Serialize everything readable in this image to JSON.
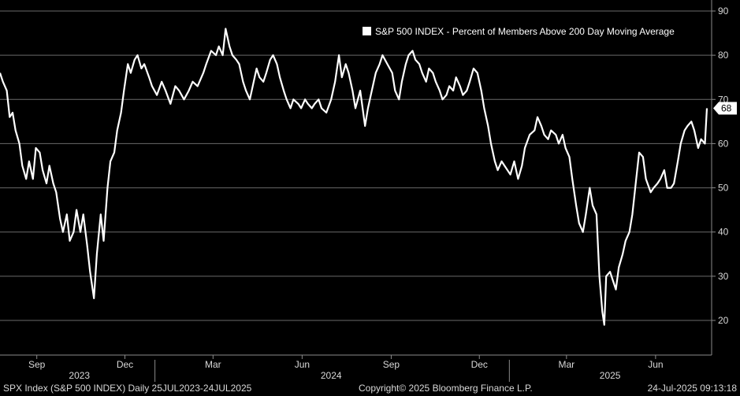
{
  "footer": {
    "left": "SPX Index (S&P 500 INDEX)  Daily 25JUL2023-24JUL2025",
    "center": "Copyright© 2025 Bloomberg Finance L.P.",
    "right": "24-Jul-2025 09:13:18"
  },
  "chart_data": {
    "type": "line",
    "title": "",
    "legend": {
      "entry": "S&P 500 INDEX - Percent of Members Above 200 Day Moving Average",
      "position": "top-right"
    },
    "ylim": [
      10,
      90
    ],
    "y_ticks": [
      20,
      30,
      40,
      50,
      60,
      70,
      80,
      90
    ],
    "grid": true,
    "y_axis_side": "right",
    "x_range": [
      "2023-07-25",
      "2025-07-24"
    ],
    "month_ticks": [
      {
        "date": "2023-09-01",
        "label": "Sep"
      },
      {
        "date": "2023-12-01",
        "label": "Dec"
      },
      {
        "date": "2024-03-01",
        "label": "Mar"
      },
      {
        "date": "2024-06-01",
        "label": "Jun"
      },
      {
        "date": "2024-09-01",
        "label": "Sep"
      },
      {
        "date": "2024-12-01",
        "label": "Dec"
      },
      {
        "date": "2025-03-01",
        "label": "Mar"
      },
      {
        "date": "2025-06-01",
        "label": "Jun"
      }
    ],
    "year_labels": [
      {
        "date": "2023-10-15",
        "label": "2023"
      },
      {
        "date": "2024-07-01",
        "label": "2024"
      },
      {
        "date": "2025-04-15",
        "label": "2025"
      }
    ],
    "year_separators": [
      "2024-01-01",
      "2025-01-01"
    ],
    "last_value": 68,
    "colors": {
      "line": "#ffffff",
      "grid": "#6a6a6a",
      "background": "#000000",
      "legend_bg": "#000000"
    },
    "series": [
      {
        "name": "S&P 500 INDEX - Percent of Members Above 200 Day Moving Average",
        "points": [
          [
            "2023-07-25",
            76
          ],
          [
            "2023-07-28",
            74
          ],
          [
            "2023-08-01",
            72
          ],
          [
            "2023-08-04",
            66
          ],
          [
            "2023-08-07",
            67
          ],
          [
            "2023-08-10",
            63
          ],
          [
            "2023-08-14",
            60
          ],
          [
            "2023-08-17",
            55
          ],
          [
            "2023-08-21",
            52
          ],
          [
            "2023-08-24",
            56
          ],
          [
            "2023-08-28",
            52
          ],
          [
            "2023-08-31",
            59
          ],
          [
            "2023-09-04",
            58
          ],
          [
            "2023-09-07",
            54
          ],
          [
            "2023-09-11",
            51
          ],
          [
            "2023-09-14",
            55
          ],
          [
            "2023-09-18",
            51
          ],
          [
            "2023-09-21",
            49
          ],
          [
            "2023-09-25",
            43
          ],
          [
            "2023-09-28",
            40
          ],
          [
            "2023-10-02",
            44
          ],
          [
            "2023-10-05",
            38
          ],
          [
            "2023-10-09",
            40
          ],
          [
            "2023-10-12",
            45
          ],
          [
            "2023-10-16",
            40
          ],
          [
            "2023-10-19",
            44
          ],
          [
            "2023-10-23",
            37
          ],
          [
            "2023-10-26",
            31
          ],
          [
            "2023-10-30",
            25
          ],
          [
            "2023-11-02",
            35
          ],
          [
            "2023-11-06",
            44
          ],
          [
            "2023-11-09",
            38
          ],
          [
            "2023-11-13",
            50
          ],
          [
            "2023-11-16",
            56
          ],
          [
            "2023-11-20",
            58
          ],
          [
            "2023-11-23",
            63
          ],
          [
            "2023-11-27",
            67
          ],
          [
            "2023-11-30",
            72
          ],
          [
            "2023-12-04",
            78
          ],
          [
            "2023-12-07",
            76
          ],
          [
            "2023-12-11",
            79
          ],
          [
            "2023-12-14",
            80
          ],
          [
            "2023-12-18",
            77
          ],
          [
            "2023-12-21",
            78
          ],
          [
            "2023-12-26",
            75
          ],
          [
            "2023-12-29",
            73
          ],
          [
            "2024-01-03",
            71
          ],
          [
            "2024-01-08",
            74
          ],
          [
            "2024-01-12",
            72
          ],
          [
            "2024-01-17",
            69
          ],
          [
            "2024-01-22",
            73
          ],
          [
            "2024-01-26",
            72
          ],
          [
            "2024-01-31",
            70
          ],
          [
            "2024-02-05",
            72
          ],
          [
            "2024-02-09",
            74
          ],
          [
            "2024-02-14",
            73
          ],
          [
            "2024-02-20",
            76
          ],
          [
            "2024-02-23",
            78
          ],
          [
            "2024-02-28",
            81
          ],
          [
            "2024-03-04",
            80
          ],
          [
            "2024-03-07",
            82
          ],
          [
            "2024-03-11",
            80
          ],
          [
            "2024-03-14",
            86
          ],
          [
            "2024-03-18",
            82
          ],
          [
            "2024-03-21",
            80
          ],
          [
            "2024-03-25",
            79
          ],
          [
            "2024-03-28",
            78
          ],
          [
            "2024-04-01",
            74
          ],
          [
            "2024-04-04",
            72
          ],
          [
            "2024-04-08",
            70
          ],
          [
            "2024-04-11",
            73
          ],
          [
            "2024-04-15",
            77
          ],
          [
            "2024-04-18",
            75
          ],
          [
            "2024-04-22",
            74
          ],
          [
            "2024-04-25",
            76
          ],
          [
            "2024-04-29",
            79
          ],
          [
            "2024-05-02",
            80
          ],
          [
            "2024-05-06",
            78
          ],
          [
            "2024-05-09",
            75
          ],
          [
            "2024-05-13",
            72
          ],
          [
            "2024-05-16",
            70
          ],
          [
            "2024-05-20",
            68
          ],
          [
            "2024-05-23",
            70
          ],
          [
            "2024-05-28",
            69
          ],
          [
            "2024-05-31",
            68
          ],
          [
            "2024-06-04",
            70
          ],
          [
            "2024-06-07",
            69
          ],
          [
            "2024-06-11",
            68
          ],
          [
            "2024-06-14",
            69
          ],
          [
            "2024-06-18",
            70
          ],
          [
            "2024-06-21",
            68
          ],
          [
            "2024-06-26",
            67
          ],
          [
            "2024-07-01",
            70
          ],
          [
            "2024-07-05",
            74
          ],
          [
            "2024-07-09",
            80
          ],
          [
            "2024-07-12",
            75
          ],
          [
            "2024-07-16",
            78
          ],
          [
            "2024-07-19",
            76
          ],
          [
            "2024-07-23",
            72
          ],
          [
            "2024-07-26",
            68
          ],
          [
            "2024-07-31",
            72
          ],
          [
            "2024-08-05",
            64
          ],
          [
            "2024-08-08",
            68
          ],
          [
            "2024-08-12",
            72
          ],
          [
            "2024-08-16",
            76
          ],
          [
            "2024-08-20",
            78
          ],
          [
            "2024-08-23",
            80
          ],
          [
            "2024-08-28",
            78
          ],
          [
            "2024-09-02",
            76
          ],
          [
            "2024-09-05",
            72
          ],
          [
            "2024-09-09",
            70
          ],
          [
            "2024-09-12",
            74
          ],
          [
            "2024-09-16",
            78
          ],
          [
            "2024-09-19",
            80
          ],
          [
            "2024-09-23",
            81
          ],
          [
            "2024-09-26",
            79
          ],
          [
            "2024-09-30",
            78
          ],
          [
            "2024-10-03",
            76
          ],
          [
            "2024-10-07",
            74
          ],
          [
            "2024-10-10",
            77
          ],
          [
            "2024-10-14",
            76
          ],
          [
            "2024-10-17",
            74
          ],
          [
            "2024-10-21",
            72
          ],
          [
            "2024-10-24",
            70
          ],
          [
            "2024-10-28",
            71
          ],
          [
            "2024-10-31",
            73
          ],
          [
            "2024-11-04",
            72
          ],
          [
            "2024-11-07",
            75
          ],
          [
            "2024-11-11",
            73
          ],
          [
            "2024-11-14",
            71
          ],
          [
            "2024-11-18",
            72
          ],
          [
            "2024-11-21",
            74
          ],
          [
            "2024-11-25",
            77
          ],
          [
            "2024-11-29",
            76
          ],
          [
            "2024-12-03",
            72
          ],
          [
            "2024-12-06",
            68
          ],
          [
            "2024-12-10",
            64
          ],
          [
            "2024-12-13",
            60
          ],
          [
            "2024-12-17",
            56
          ],
          [
            "2024-12-20",
            54
          ],
          [
            "2024-12-24",
            56
          ],
          [
            "2024-12-27",
            55
          ],
          [
            "2025-01-02",
            53
          ],
          [
            "2025-01-06",
            56
          ],
          [
            "2025-01-10",
            52
          ],
          [
            "2025-01-14",
            55
          ],
          [
            "2025-01-17",
            59
          ],
          [
            "2025-01-22",
            62
          ],
          [
            "2025-01-27",
            63
          ],
          [
            "2025-01-30",
            66
          ],
          [
            "2025-02-03",
            64
          ],
          [
            "2025-02-06",
            62
          ],
          [
            "2025-02-10",
            61
          ],
          [
            "2025-02-13",
            63
          ],
          [
            "2025-02-18",
            62
          ],
          [
            "2025-02-21",
            60
          ],
          [
            "2025-02-25",
            62
          ],
          [
            "2025-02-28",
            59
          ],
          [
            "2025-03-04",
            57
          ],
          [
            "2025-03-07",
            52
          ],
          [
            "2025-03-11",
            46
          ],
          [
            "2025-03-14",
            42
          ],
          [
            "2025-03-18",
            40
          ],
          [
            "2025-03-21",
            44
          ],
          [
            "2025-03-25",
            50
          ],
          [
            "2025-03-28",
            46
          ],
          [
            "2025-04-01",
            44
          ],
          [
            "2025-04-04",
            30
          ],
          [
            "2025-04-07",
            22
          ],
          [
            "2025-04-09",
            19
          ],
          [
            "2025-04-11",
            30
          ],
          [
            "2025-04-15",
            31
          ],
          [
            "2025-04-18",
            29
          ],
          [
            "2025-04-21",
            27
          ],
          [
            "2025-04-24",
            32
          ],
          [
            "2025-04-28",
            35
          ],
          [
            "2025-05-01",
            38
          ],
          [
            "2025-05-05",
            40
          ],
          [
            "2025-05-08",
            44
          ],
          [
            "2025-05-12",
            52
          ],
          [
            "2025-05-15",
            58
          ],
          [
            "2025-05-19",
            57
          ],
          [
            "2025-05-22",
            52
          ],
          [
            "2025-05-27",
            49
          ],
          [
            "2025-05-30",
            50
          ],
          [
            "2025-06-03",
            51
          ],
          [
            "2025-06-06",
            52
          ],
          [
            "2025-06-10",
            54
          ],
          [
            "2025-06-13",
            50
          ],
          [
            "2025-06-17",
            50
          ],
          [
            "2025-06-20",
            51
          ],
          [
            "2025-06-24",
            56
          ],
          [
            "2025-06-27",
            60
          ],
          [
            "2025-07-01",
            63
          ],
          [
            "2025-07-04",
            64
          ],
          [
            "2025-07-08",
            65
          ],
          [
            "2025-07-11",
            63
          ],
          [
            "2025-07-15",
            59
          ],
          [
            "2025-07-18",
            61
          ],
          [
            "2025-07-22",
            60
          ],
          [
            "2025-07-24",
            68
          ]
        ]
      }
    ]
  }
}
